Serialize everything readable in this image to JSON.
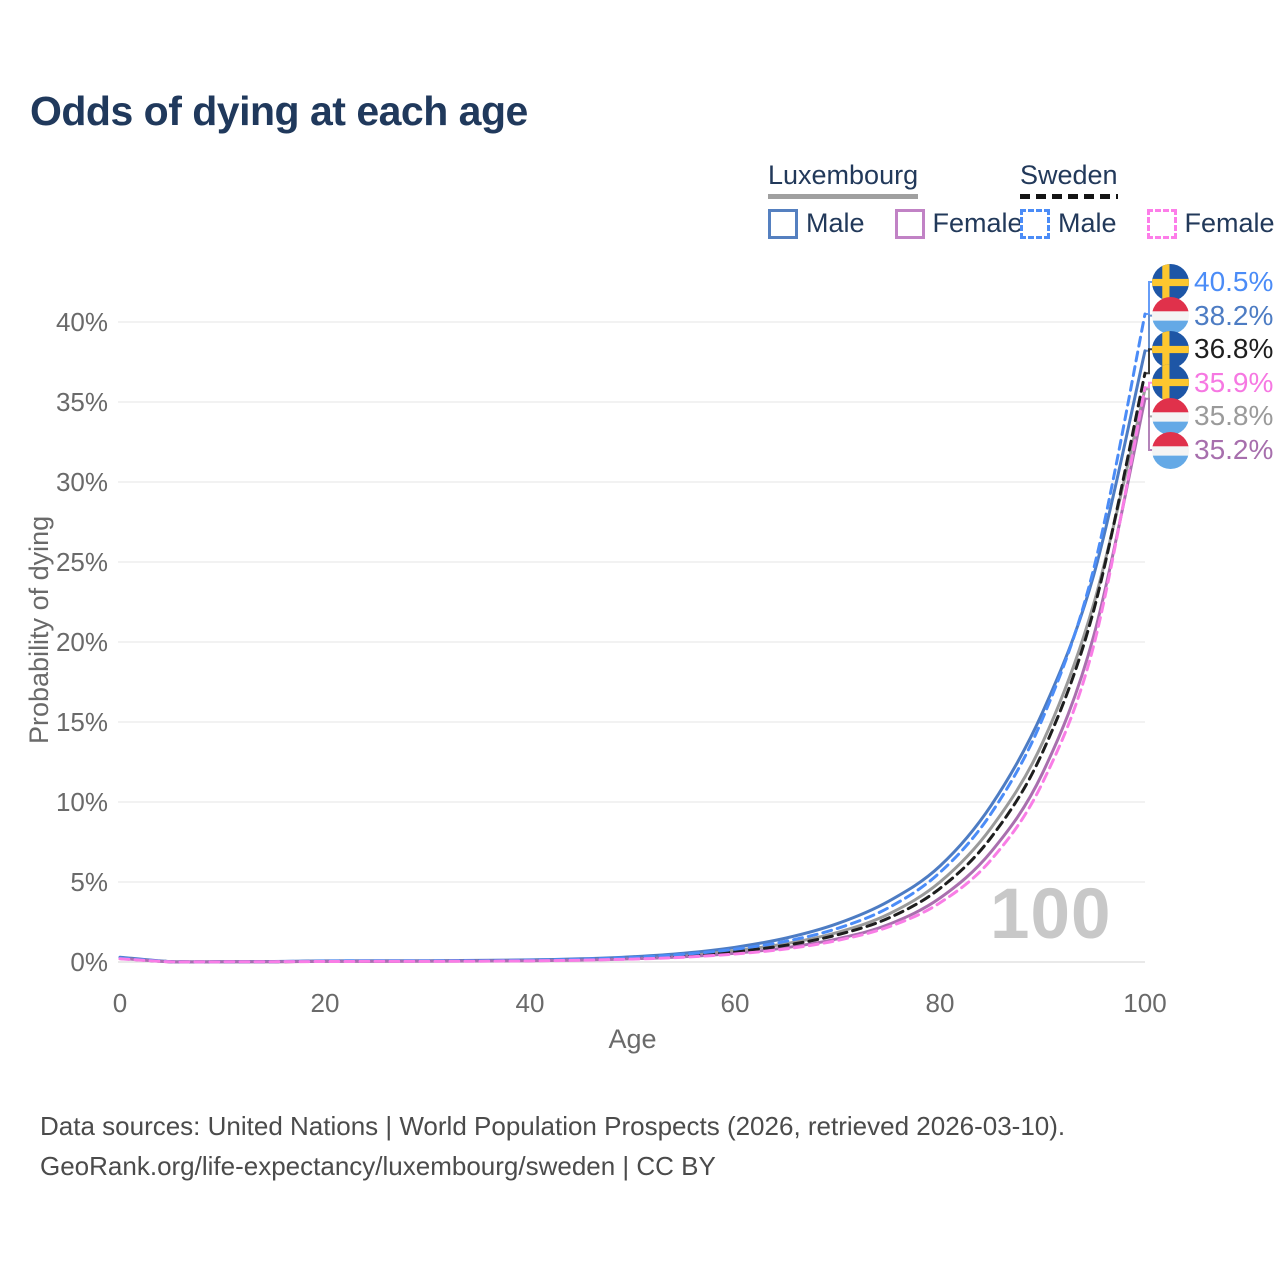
{
  "title": "Odds of dying at each age",
  "legend": {
    "groups": [
      {
        "label": "Luxembourg",
        "line_style": "solid",
        "items": [
          {
            "label": "Male",
            "color": "#4d7cc3"
          },
          {
            "label": "Female",
            "color": "#c182c5"
          }
        ]
      },
      {
        "label": "Sweden",
        "line_style": "dashed",
        "items": [
          {
            "label": "Male",
            "color": "#4b8cf7"
          },
          {
            "label": "Female",
            "color": "#fd7de9"
          }
        ]
      }
    ]
  },
  "watermark": "100",
  "footer": {
    "line1": "Data sources: United Nations | World Population Prospects (2026, retrieved 2026-03-10).",
    "line2": "GeoRank.org/life-expectancy/luxembourg/sweden | CC BY"
  },
  "flags": {
    "sweden": {
      "bg": "#1e56a6",
      "cross": "#fdc72f"
    },
    "luxembourg": {
      "red": "#e0314b",
      "white": "#f4f4f4",
      "blue": "#64a9e6"
    }
  },
  "chart_data": {
    "type": "line",
    "title": "Odds of dying at each age",
    "xlabel": "Age",
    "ylabel": "Probability of dying",
    "xlim": [
      0,
      100
    ],
    "ylim_pct": [
      0,
      42
    ],
    "grid": "horizontal-only",
    "xticks": [
      0,
      20,
      40,
      60,
      80,
      100
    ],
    "xtick_labels": [
      "0",
      "20",
      "40",
      "60",
      "80",
      "100"
    ],
    "yticks_pct": [
      0,
      5,
      10,
      15,
      20,
      25,
      30,
      35,
      40
    ],
    "ytick_labels": [
      "0%",
      "5%",
      "10%",
      "15%",
      "20%",
      "25%",
      "30%",
      "35%",
      "40%"
    ],
    "x_ages": [
      0,
      5,
      10,
      15,
      20,
      25,
      30,
      35,
      40,
      45,
      50,
      55,
      60,
      65,
      70,
      75,
      80,
      85,
      90,
      95,
      100
    ],
    "series": [
      {
        "id": "luxembourg-both",
        "country": "Luxembourg",
        "sex": "Both",
        "line": "solid",
        "color": "#9a9a9a",
        "end_value_pct": 35.8,
        "values_pct": [
          0.27,
          0.02,
          0.01,
          0.02,
          0.05,
          0.06,
          0.06,
          0.08,
          0.1,
          0.16,
          0.26,
          0.43,
          0.72,
          1.15,
          1.85,
          3.0,
          5.0,
          8.4,
          13.7,
          22.4,
          35.8
        ]
      },
      {
        "id": "luxembourg-male",
        "country": "Luxembourg",
        "sex": "Male",
        "line": "solid",
        "color": "#4d7cc3",
        "end_value_pct": 38.2,
        "values_pct": [
          0.3,
          0.02,
          0.01,
          0.03,
          0.07,
          0.08,
          0.08,
          0.1,
          0.13,
          0.2,
          0.33,
          0.55,
          0.92,
          1.5,
          2.4,
          3.8,
          6.0,
          9.8,
          15.6,
          24.2,
          38.2
        ]
      },
      {
        "id": "luxembourg-female",
        "country": "Luxembourg",
        "sex": "Female",
        "line": "solid",
        "color": "#a96fae",
        "end_value_pct": 35.2,
        "values_pct": [
          0.24,
          0.01,
          0.01,
          0.02,
          0.04,
          0.04,
          0.05,
          0.06,
          0.08,
          0.12,
          0.2,
          0.33,
          0.55,
          0.9,
          1.45,
          2.35,
          4.0,
          6.9,
          11.8,
          20.4,
          35.2
        ]
      },
      {
        "id": "sweden-both",
        "country": "Sweden",
        "sex": "Both",
        "line": "dashed",
        "color": "#1e1e1e",
        "end_value_pct": 36.8,
        "values_pct": [
          0.22,
          0.02,
          0.01,
          0.02,
          0.05,
          0.05,
          0.06,
          0.07,
          0.09,
          0.14,
          0.23,
          0.39,
          0.65,
          1.05,
          1.7,
          2.75,
          4.6,
          7.8,
          13.1,
          22.0,
          36.8
        ]
      },
      {
        "id": "sweden-male",
        "country": "Sweden",
        "sex": "Male",
        "line": "dashed",
        "color": "#4b8cf7",
        "end_value_pct": 40.5,
        "values_pct": [
          0.25,
          0.02,
          0.01,
          0.02,
          0.06,
          0.07,
          0.07,
          0.08,
          0.11,
          0.17,
          0.28,
          0.48,
          0.8,
          1.3,
          2.1,
          3.4,
          5.6,
          9.3,
          15.2,
          24.6,
          40.5
        ]
      },
      {
        "id": "sweden-female",
        "country": "Sweden",
        "sex": "Female",
        "line": "dashed",
        "color": "#f97de6",
        "end_value_pct": 35.9,
        "values_pct": [
          0.2,
          0.01,
          0.01,
          0.02,
          0.03,
          0.04,
          0.04,
          0.05,
          0.07,
          0.11,
          0.18,
          0.3,
          0.5,
          0.82,
          1.35,
          2.2,
          3.7,
          6.4,
          11.2,
          19.8,
          35.9
        ]
      }
    ],
    "end_labels": [
      {
        "flag": "sweden",
        "series": "sweden-male",
        "value": "40.5%",
        "pct": 40.5,
        "color": "#4b8cf7"
      },
      {
        "flag": "luxembourg",
        "series": "luxembourg-male",
        "value": "38.2%",
        "pct": 38.2,
        "color": "#4d7cc3"
      },
      {
        "flag": "sweden",
        "series": "sweden-both",
        "value": "36.8%",
        "pct": 36.8,
        "color": "#1e1e1e"
      },
      {
        "flag": "sweden",
        "series": "sweden-female",
        "value": "35.9%",
        "pct": 35.9,
        "color": "#f678e2"
      },
      {
        "flag": "luxembourg",
        "series": "luxembourg-both",
        "value": "35.8%",
        "pct": 35.8,
        "color": "#9a9a9a"
      },
      {
        "flag": "luxembourg",
        "series": "luxembourg-female",
        "value": "35.2%",
        "pct": 35.2,
        "color": "#a76fad"
      }
    ],
    "legend_position": "top-right"
  }
}
